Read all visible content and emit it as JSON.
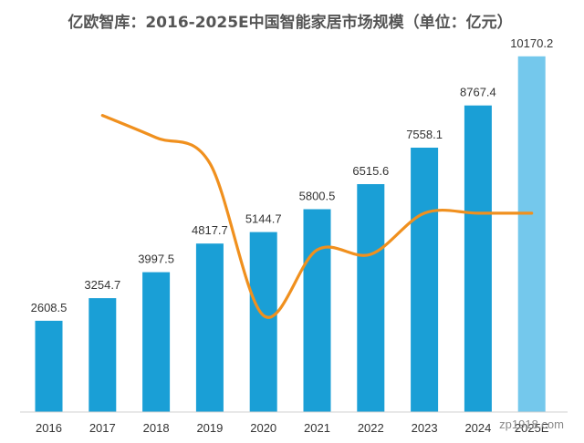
{
  "chart_data": {
    "type": "bar",
    "title": "亿欧智库：2016-2025E中国智能家居市场规模（单位：亿元）",
    "categories": [
      "2016",
      "2017",
      "2018",
      "2019",
      "2020",
      "2021",
      "2022",
      "2023",
      "2024",
      "2025E"
    ],
    "series": [
      {
        "values": [
          2608.5,
          3254.7,
          3997.5,
          4817.7,
          5144.7,
          5800.5,
          6515.6,
          7558.1,
          8767.4,
          10170.2
        ],
        "color": "#1a9fd6",
        "forecast_color": "#74c8ec"
      }
    ],
    "growth_line": {
      "type": "line",
      "color": "#f0901e",
      "values": [
        24.8,
        22.8,
        20.5,
        6.8,
        12.7,
        12.3,
        16.0,
        16.0,
        16.0
      ]
    },
    "ylim": [
      0,
      11000
    ],
    "grid": false,
    "watermark": "zp1918.com"
  }
}
